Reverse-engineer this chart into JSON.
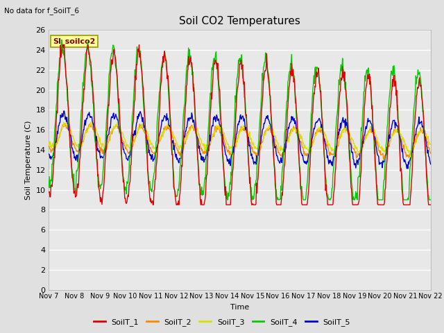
{
  "title": "Soil CO2 Temperatures",
  "subtitle": "No data for f_SoilT_6",
  "ylabel": "Soil Temperature (C)",
  "xlabel": "Time",
  "annotation": "SI_soilco2",
  "ylim": [
    0,
    26
  ],
  "yticks": [
    0,
    2,
    4,
    6,
    8,
    10,
    12,
    14,
    16,
    18,
    20,
    22,
    24,
    26
  ],
  "xtick_labels": [
    "Nov 7",
    "Nov 8",
    "Nov 9",
    "Nov 10",
    "Nov 11",
    "Nov 12",
    "Nov 13",
    "Nov 14",
    "Nov 15",
    "Nov 16",
    "Nov 17",
    "Nov 18",
    "Nov 19",
    "Nov 20",
    "Nov 21",
    "Nov 22"
  ],
  "colors": {
    "SoilT_1": "#dd0000",
    "SoilT_2": "#ff8800",
    "SoilT_3": "#dddd00",
    "SoilT_4": "#00cc00",
    "SoilT_5": "#0000cc"
  },
  "legend_labels": [
    "SoilT_1",
    "SoilT_2",
    "SoilT_3",
    "SoilT_4",
    "SoilT_5"
  ],
  "fig_bg_color": "#e0e0e0",
  "plot_bg_color": "#e8e8e8",
  "grid_color": "#ffffff",
  "annotation_bg": "#ffff99",
  "annotation_border": "#999900",
  "annotation_text_color": "#880000"
}
